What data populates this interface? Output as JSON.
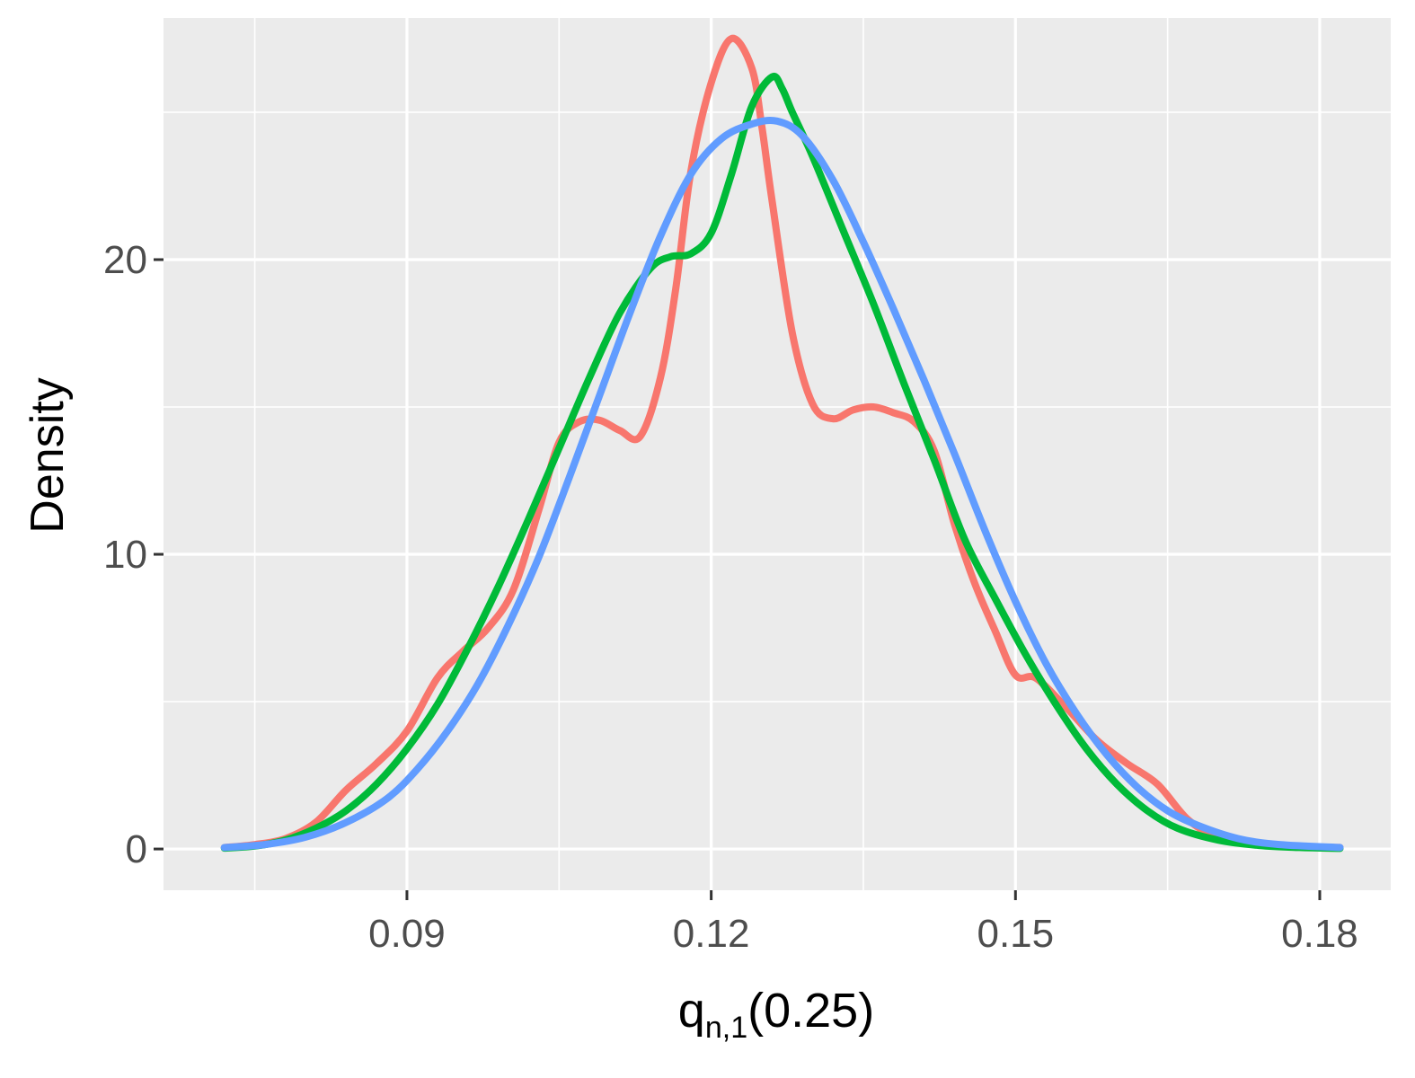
{
  "chart_data": {
    "type": "line",
    "title": "",
    "xlabel": {
      "main": "q",
      "subscript": "n,1",
      "argument": "(0.25)"
    },
    "ylabel": "Density",
    "xlim": [
      0.066,
      0.187
    ],
    "ylim": [
      -1.4,
      28.2
    ],
    "x_ticks": [
      0.09,
      0.12,
      0.15,
      0.18
    ],
    "x_tick_labels": [
      "0.09",
      "0.12",
      "0.15",
      "0.18"
    ],
    "x_minor_ticks": [
      0.075,
      0.105,
      0.135,
      0.165
    ],
    "y_ticks": [
      0,
      10,
      20
    ],
    "y_tick_labels": [
      "0",
      "10",
      "20"
    ],
    "y_minor_ticks": [
      5,
      15,
      25
    ],
    "grid": true,
    "legend": "none",
    "colors": {
      "panel_background": "#ebebeb",
      "grid": "#ffffff"
    },
    "series": [
      {
        "color": "#f8766d",
        "x": [
          0.072,
          0.075,
          0.078,
          0.081,
          0.084,
          0.087,
          0.09,
          0.093,
          0.0955,
          0.098,
          0.1005,
          0.103,
          0.105,
          0.107,
          0.109,
          0.111,
          0.113,
          0.115,
          0.1165,
          0.118,
          0.12,
          0.122,
          0.124,
          0.125,
          0.126,
          0.128,
          0.13,
          0.132,
          0.134,
          0.136,
          0.138,
          0.14,
          0.142,
          0.144,
          0.146,
          0.148,
          0.15,
          0.152,
          0.155,
          0.158,
          0.161,
          0.164,
          0.167,
          0.17,
          0.174,
          0.178,
          0.182
        ],
        "y": [
          0.05,
          0.15,
          0.35,
          0.9,
          2.0,
          2.9,
          4.0,
          5.8,
          6.7,
          7.5,
          8.8,
          11.5,
          13.8,
          14.5,
          14.55,
          14.2,
          14.0,
          16.0,
          19.0,
          23.0,
          26.0,
          27.5,
          26.5,
          24.5,
          22.0,
          17.5,
          15.1,
          14.6,
          14.9,
          15.0,
          14.8,
          14.5,
          13.5,
          11.0,
          9.0,
          7.4,
          5.9,
          5.8,
          4.8,
          3.7,
          2.9,
          2.2,
          1.0,
          0.4,
          0.15,
          0.07,
          0.05
        ]
      },
      {
        "color": "#00ba38",
        "x": [
          0.072,
          0.075,
          0.078,
          0.081,
          0.084,
          0.087,
          0.09,
          0.093,
          0.096,
          0.099,
          0.102,
          0.105,
          0.108,
          0.111,
          0.114,
          0.116,
          0.118,
          0.12,
          0.122,
          0.124,
          0.126,
          0.127,
          0.128,
          0.13,
          0.133,
          0.136,
          0.139,
          0.142,
          0.145,
          0.148,
          0.151,
          0.154,
          0.157,
          0.16,
          0.163,
          0.166,
          0.17,
          0.174,
          0.178,
          0.182
        ],
        "y": [
          0.03,
          0.1,
          0.3,
          0.7,
          1.3,
          2.2,
          3.4,
          4.9,
          6.8,
          8.9,
          11.2,
          13.6,
          16.0,
          18.2,
          19.7,
          20.1,
          20.2,
          20.9,
          22.9,
          25.2,
          26.2,
          25.8,
          25.0,
          23.5,
          21.0,
          18.5,
          15.8,
          13.2,
          10.5,
          8.5,
          6.6,
          4.9,
          3.4,
          2.2,
          1.3,
          0.7,
          0.3,
          0.12,
          0.05,
          0.02
        ]
      },
      {
        "color": "#619cff",
        "x": [
          0.072,
          0.076,
          0.08,
          0.084,
          0.088,
          0.091,
          0.094,
          0.097,
          0.1,
          0.103,
          0.106,
          0.109,
          0.112,
          0.115,
          0.118,
          0.121,
          0.124,
          0.1265,
          0.129,
          0.132,
          0.135,
          0.138,
          0.141,
          0.144,
          0.147,
          0.15,
          0.153,
          0.156,
          0.159,
          0.162,
          0.165,
          0.168,
          0.172,
          0.176,
          0.182
        ],
        "y": [
          0.05,
          0.15,
          0.4,
          0.9,
          1.7,
          2.7,
          4.0,
          5.6,
          7.6,
          9.9,
          12.6,
          15.4,
          18.2,
          20.8,
          22.9,
          24.1,
          24.6,
          24.7,
          24.2,
          22.7,
          20.6,
          18.3,
          15.9,
          13.4,
          10.8,
          8.4,
          6.3,
          4.6,
          3.2,
          2.1,
          1.3,
          0.8,
          0.35,
          0.15,
          0.05
        ]
      }
    ]
  }
}
